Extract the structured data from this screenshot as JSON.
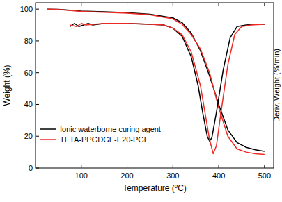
{
  "chart_data": {
    "type": "line",
    "x_label": "Temperature (ºC)",
    "y_label": "Weight (%)",
    "y2_label": "Deriv. Weight (%/min)",
    "xlim": [
      0,
      520
    ],
    "xticks": [
      100,
      200,
      300,
      400,
      500
    ],
    "ylim": [
      0,
      104
    ],
    "yticks": [
      0,
      20,
      40,
      60,
      80,
      100
    ],
    "y2lim": [
      0,
      104
    ],
    "legend": "lower left",
    "series": [
      {
        "name": "Ionic waterborne curing agent",
        "color": "#000000",
        "x": [
          25,
          50,
          100,
          150,
          200,
          250,
          300,
          320,
          340,
          360,
          380,
          400,
          420,
          440,
          460,
          480,
          500
        ],
        "values": [
          100,
          99.8,
          98.8,
          98.3,
          97.8,
          96.8,
          94.5,
          91.5,
          85,
          74,
          58,
          40,
          24,
          16,
          13,
          11.5,
          10.5
        ]
      },
      {
        "name": "TETA-PPGDGE-E20-PGE",
        "color": "#ee2a24",
        "x": [
          25,
          50,
          100,
          150,
          200,
          250,
          300,
          320,
          340,
          360,
          380,
          400,
          420,
          440,
          460,
          480,
          500
        ],
        "values": [
          100,
          99.7,
          98.5,
          98,
          97.5,
          96.5,
          93.8,
          90.5,
          84,
          75,
          60,
          38,
          20,
          12,
          10,
          9,
          8.5
        ]
      },
      {
        "color": "#000000",
        "axis": "y2",
        "x": [
          75,
          85,
          95,
          105,
          115,
          125,
          150,
          200,
          250,
          280,
          300,
          320,
          340,
          355,
          365,
          375,
          380,
          385,
          395,
          410,
          425,
          440,
          460,
          480,
          500
        ],
        "values": [
          89,
          91,
          89,
          90,
          91,
          90,
          91,
          91,
          90.5,
          90,
          88,
          83,
          70,
          52,
          35,
          20,
          17,
          19,
          35,
          62,
          82,
          89,
          90,
          90.5,
          90.5
        ]
      },
      {
        "color": "#ee2a24",
        "axis": "y2",
        "x": [
          75,
          90,
          100,
          110,
          150,
          200,
          250,
          280,
          300,
          320,
          340,
          360,
          370,
          380,
          388,
          395,
          405,
          420,
          435,
          450,
          470,
          500
        ],
        "values": [
          90,
          89,
          91,
          90,
          91,
          91,
          90.5,
          90,
          88,
          84,
          73,
          52,
          35,
          18,
          9,
          14,
          35,
          65,
          84,
          89,
          90,
          90.5
        ]
      }
    ]
  }
}
